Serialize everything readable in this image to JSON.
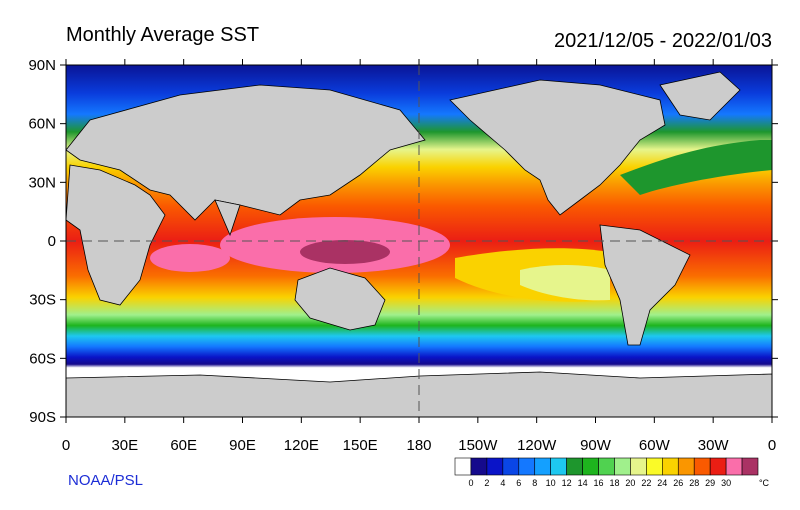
{
  "header": {
    "title": "Monthly Average SST",
    "dates": "2021/12/05 - 2022/01/03"
  },
  "credit": "NOAA/PSL",
  "axes": {
    "lat_labels": [
      "90N",
      "60N",
      "30N",
      "0",
      "30S",
      "60S",
      "90S"
    ],
    "lon_labels": [
      "0",
      "30E",
      "60E",
      "90E",
      "120E",
      "150E",
      "180",
      "150W",
      "120W",
      "90W",
      "60W",
      "30W",
      "0"
    ]
  },
  "colorbar": {
    "unit": "°C",
    "tick_labels": [
      "0",
      "2",
      "4",
      "6",
      "8",
      "10",
      "12",
      "14",
      "16",
      "18",
      "20",
      "22",
      "24",
      "26",
      "28",
      "29",
      "30"
    ],
    "colors": [
      "#ffffff",
      "#150a8c",
      "#0a14c8",
      "#0a46e6",
      "#1478ff",
      "#14a0ff",
      "#1ec8f0",
      "#1e962d",
      "#1eb41e",
      "#50d250",
      "#a0f08c",
      "#e6f58c",
      "#fafa28",
      "#fad200",
      "#fa9600",
      "#fa5a00",
      "#eb1e14",
      "#fa6eaa",
      "#aa3264"
    ]
  },
  "colors": {
    "land": "#cccccc",
    "no_data": "#ffffff",
    "coast": "#000000"
  },
  "map": {
    "lon_range": [
      0,
      360
    ],
    "lat_range": [
      -90,
      90
    ],
    "dashed_reference": [
      "equator",
      "dateline"
    ]
  }
}
